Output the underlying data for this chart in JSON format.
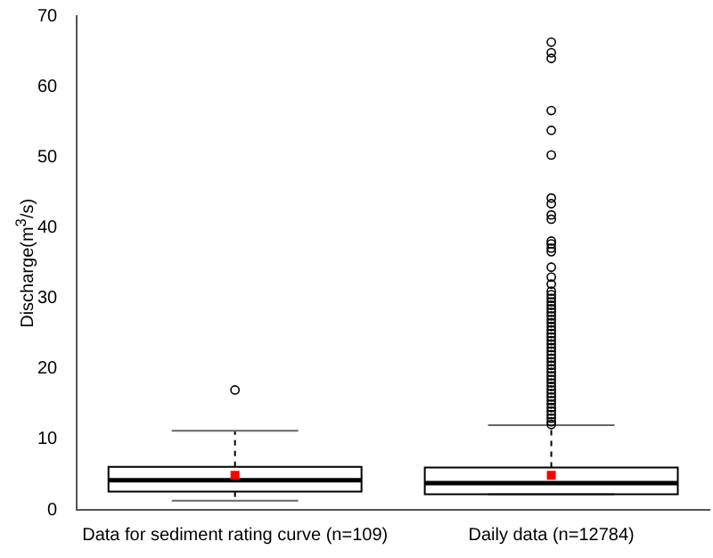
{
  "chart_data": {
    "type": "box",
    "ylabel": "Discharge(m$^{3}$/s)",
    "categories": [
      "Data for sediment rating curve (n=109)",
      "Daily data (n=12784)"
    ],
    "ylim": [
      0,
      70
    ],
    "yticks": [
      0,
      10,
      20,
      30,
      40,
      50,
      60,
      70
    ],
    "grid": false,
    "legend": false,
    "color": "#000000",
    "boxes": [
      {
        "low": 1.3,
        "q1": 2.6,
        "median": 4.2,
        "q3": 6.1,
        "high": 11.2,
        "mean": 4.9,
        "outliers": [
          17.0
        ]
      },
      {
        "low": 2.2,
        "q1": 2.2,
        "median": 3.8,
        "q3": 6.0,
        "high": 12.0,
        "mean": 4.9,
        "outliers": [
          66.3,
          64.8,
          64.0,
          56.6,
          53.8,
          50.3,
          44.2,
          43.4,
          41.8,
          41.2,
          38.1,
          37.7,
          37.1,
          36.6,
          34.4,
          33.0,
          32.0,
          31.0,
          30.5,
          30.0,
          29.5,
          29.0,
          28.5,
          28.0,
          27.5,
          27.0,
          26.5,
          26.0,
          25.5,
          25.0,
          24.5,
          24.0,
          23.5,
          23.0,
          22.5,
          22.0,
          21.5,
          21.0,
          20.5,
          20.0,
          19.5,
          19.0,
          18.5,
          18.0,
          17.5,
          17.0,
          16.5,
          16.0,
          15.5,
          15.0,
          14.5,
          14.0,
          13.5,
          13.0,
          12.5,
          12.1
        ]
      }
    ]
  }
}
